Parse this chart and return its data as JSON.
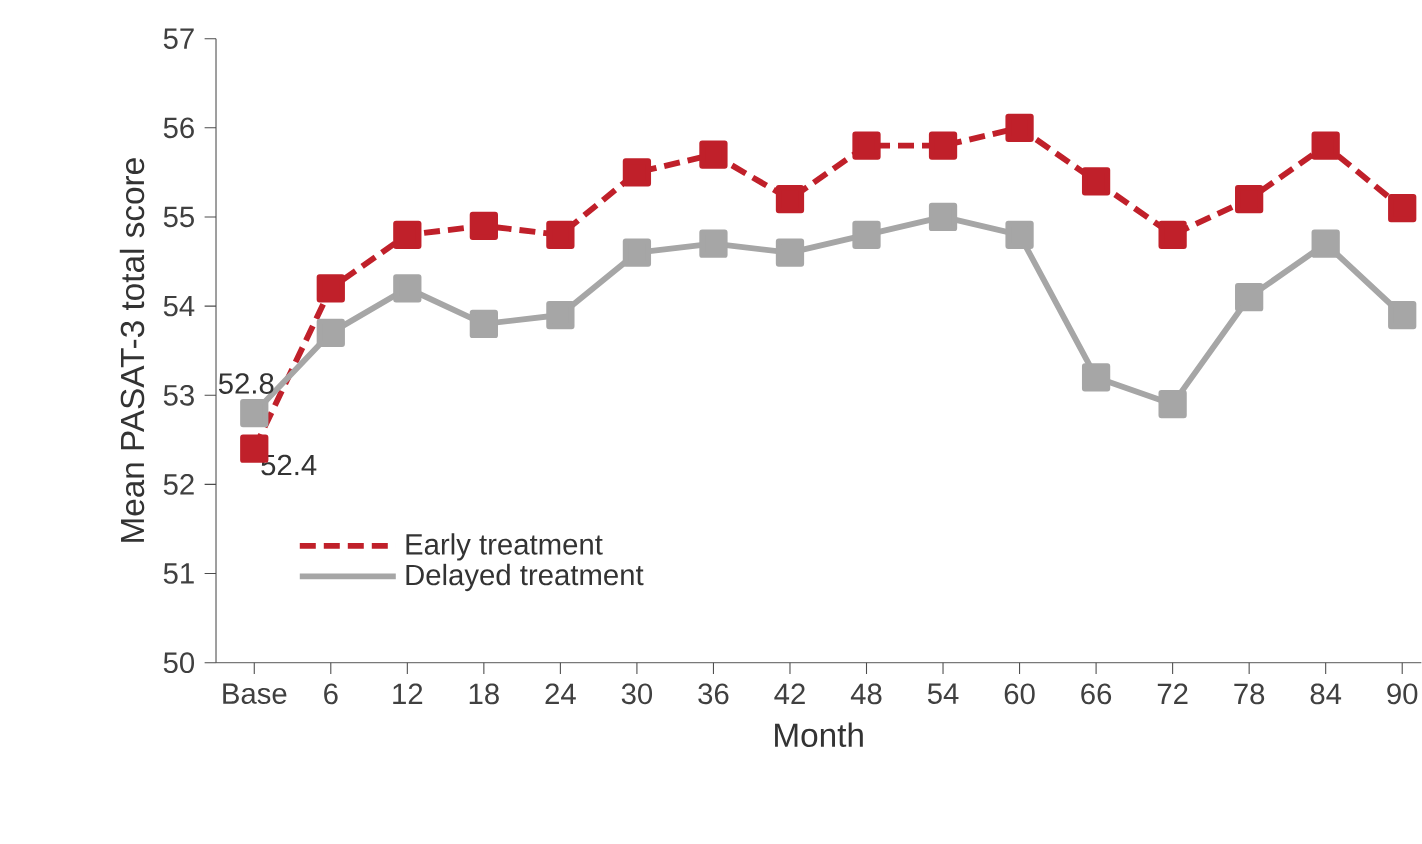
{
  "chart_data": {
    "type": "line",
    "xlabel": "Month",
    "ylabel": "Mean PASAT-3 total score",
    "categories": [
      "Base",
      "6",
      "12",
      "18",
      "24",
      "30",
      "36",
      "42",
      "48",
      "54",
      "60",
      "66",
      "72",
      "78",
      "84",
      "90"
    ],
    "ylim": [
      50,
      57
    ],
    "yticks": [
      50,
      51,
      52,
      53,
      54,
      55,
      56,
      57
    ],
    "grid": false,
    "legend": "bottom left",
    "marker": "square",
    "series": [
      {
        "name": "Early treatment",
        "color": "#c0202a",
        "line_style": "dashed",
        "values": [
          52.4,
          54.2,
          54.8,
          54.9,
          54.8,
          55.5,
          55.7,
          55.2,
          55.8,
          55.8,
          56.0,
          55.4,
          54.8,
          55.2,
          55.8,
          55.1
        ]
      },
      {
        "name": "Delayed treatment",
        "color": "#a6a6a6",
        "line_style": "solid",
        "values": [
          52.8,
          53.7,
          54.2,
          53.8,
          53.9,
          54.6,
          54.7,
          54.6,
          54.8,
          55.0,
          54.8,
          53.2,
          52.9,
          54.1,
          54.7,
          53.9
        ]
      }
    ],
    "annotations": [
      {
        "text": "52.8",
        "x": "Base",
        "y": 52.8
      },
      {
        "text": "52.4",
        "x": "Base",
        "y": 52.4
      }
    ]
  }
}
